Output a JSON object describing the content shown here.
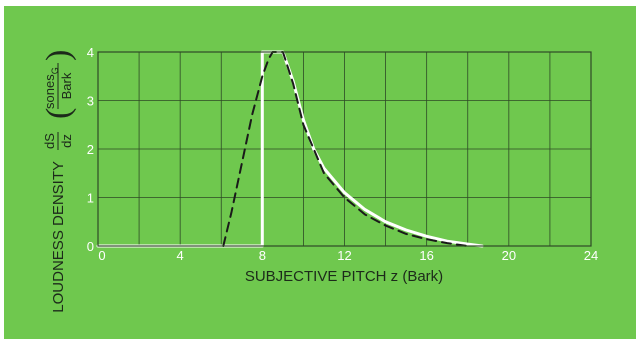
{
  "chart_data": {
    "type": "line",
    "title": "",
    "xlabel": "SUBJECTIVE PITCH z (Bark)",
    "ylabel": {
      "main": "LOUDNESS DENSITY",
      "deriv_num": "dS",
      "deriv_den": "dz",
      "unit_num": "sones",
      "unit_sub": "G",
      "unit_den": "Bark"
    },
    "xlim": [
      0,
      24
    ],
    "ylim": [
      0,
      4
    ],
    "xticks": [
      0,
      4,
      8,
      12,
      16,
      20,
      24
    ],
    "yticks": [
      0,
      1,
      2,
      3,
      4
    ],
    "grid": true,
    "series": [
      {
        "style": "solid white",
        "color": "#ffffff",
        "x": [
          0,
          8.0,
          8.0,
          9.0,
          9.5,
          10.0,
          10.5,
          11.0,
          12.0,
          13.0,
          14.0,
          15.0,
          16.0,
          17.0,
          18.0,
          18.7
        ],
        "y": [
          0,
          0,
          4.0,
          4.0,
          3.4,
          2.6,
          2.0,
          1.6,
          1.1,
          0.75,
          0.5,
          0.33,
          0.2,
          0.1,
          0.04,
          0
        ]
      },
      {
        "style": "dashed black",
        "color": "#1a1a1a",
        "x": [
          6.1,
          6.5,
          7.0,
          7.5,
          8.0,
          8.3,
          8.5,
          9.0,
          9.5,
          10.0,
          11.0,
          12.0,
          13.0,
          14.0,
          15.0,
          16.0,
          17.0,
          18.0
        ],
        "y": [
          0,
          0.7,
          1.7,
          2.7,
          3.5,
          3.85,
          4.0,
          4.0,
          3.35,
          2.5,
          1.5,
          1.0,
          0.65,
          0.42,
          0.25,
          0.14,
          0.06,
          0
        ]
      }
    ]
  }
}
